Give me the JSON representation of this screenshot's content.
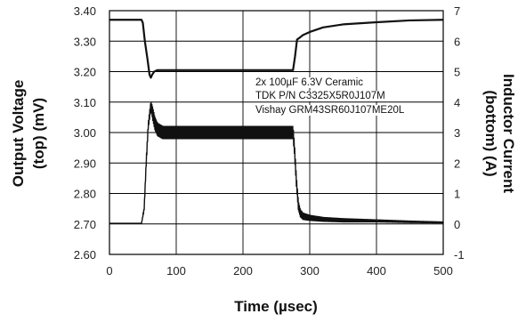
{
  "chart_data": {
    "type": "line",
    "xlabel": "Time (µsec)",
    "ylabel_left": [
      "Output Voltage",
      "(top) (mV)"
    ],
    "ylabel_right": [
      "Inductor Current",
      "(bottom) (A)"
    ],
    "xlim": [
      0,
      500
    ],
    "ylim_left": [
      2.6,
      3.4
    ],
    "ylim_right": [
      -1,
      7
    ],
    "x_ticks": [
      "0",
      "100",
      "200",
      "300",
      "400",
      "500"
    ],
    "y_left_ticks": [
      "3.40",
      "3.30",
      "3.20",
      "3.10",
      "3.00",
      "2.90",
      "2.80",
      "2.70",
      "2.60"
    ],
    "y_right_ticks": [
      "7",
      "6",
      "5",
      "4",
      "3",
      "2",
      "1",
      "0",
      "-1"
    ],
    "grid": true,
    "annotation": [
      "2x 100µF 6.3V Ceramic",
      "TDK P/N C3325X5R0J107M",
      "Vishay GRM43SR60J107ME20L"
    ],
    "series": [
      {
        "axis": "left",
        "color": "#111111",
        "x": [
          0,
          48,
          50,
          53,
          57,
          60,
          62,
          64,
          67,
          72,
          80,
          100,
          150,
          200,
          250,
          275,
          278,
          281,
          284,
          290,
          300,
          320,
          350,
          400,
          450,
          500
        ],
        "y": [
          3.37,
          3.37,
          3.36,
          3.3,
          3.24,
          3.19,
          3.18,
          3.19,
          3.2,
          3.205,
          3.205,
          3.205,
          3.205,
          3.205,
          3.205,
          3.205,
          3.25,
          3.305,
          3.31,
          3.32,
          3.33,
          3.345,
          3.355,
          3.362,
          3.368,
          3.37
        ]
      },
      {
        "axis": "right",
        "color": "#111111",
        "band": true,
        "x": [
          0,
          48,
          52,
          55,
          58,
          62,
          65,
          68,
          72,
          76,
          80,
          90,
          100,
          150,
          200,
          250,
          275,
          277,
          280,
          283,
          286,
          290,
          300,
          320,
          350,
          400,
          450,
          500
        ],
        "y": [
          0.02,
          0.02,
          0.5,
          2.0,
          3.2,
          3.9,
          3.6,
          3.3,
          3.1,
          3.05,
          3.0,
          3.0,
          3.0,
          3.0,
          3.0,
          3.0,
          3.0,
          2.5,
          1.4,
          0.6,
          0.35,
          0.25,
          0.2,
          0.15,
          0.12,
          0.1,
          0.07,
          0.05
        ],
        "ripple_a": [
          0.0,
          0.0,
          0.05,
          0.1,
          0.12,
          0.15,
          0.22,
          0.22,
          0.22,
          0.22,
          0.22,
          0.22,
          0.22,
          0.22,
          0.22,
          0.22,
          0.22,
          0.2,
          0.18,
          0.15,
          0.13,
          0.12,
          0.1,
          0.08,
          0.07,
          0.05,
          0.04,
          0.03
        ]
      }
    ]
  }
}
